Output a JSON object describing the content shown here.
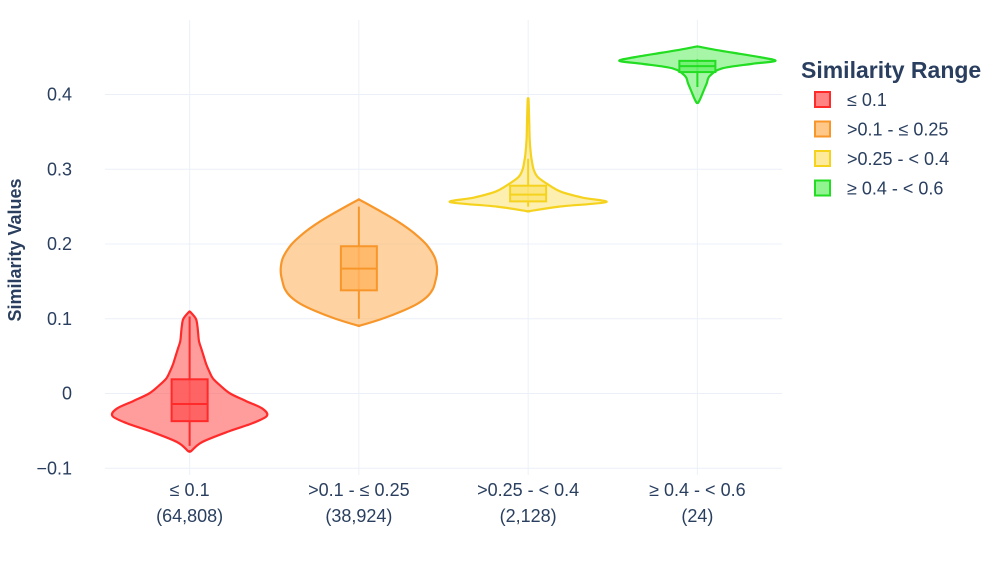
{
  "chart_data": {
    "type": "violin",
    "title": "",
    "xlabel": "",
    "ylabel": "Similarity Values",
    "ylim": [
      -0.11,
      0.47
    ],
    "yticks": [
      -0.1,
      0,
      0.1,
      0.2,
      0.3,
      0.4
    ],
    "ytick_labels": [
      "−0.1",
      "0",
      "0.1",
      "0.2",
      "0.3",
      "0.4"
    ],
    "grid": true,
    "legend": {
      "title": "Similarity Range",
      "position": "right"
    },
    "series": [
      {
        "name": "≤ 0.1",
        "category_line1": "≤ 0.1",
        "category_line2": "(64,808)",
        "color": "#ff2a2a",
        "fill": "#ff5a5a",
        "box": {
          "whisker_low": -0.07,
          "q1": -0.037,
          "median": -0.014,
          "q3": 0.019,
          "whisker_high": 0.103
        },
        "violin": {
          "y_min": -0.077,
          "y_max": 0.109,
          "profile": [
            [
              -0.077,
              0.02
            ],
            [
              -0.065,
              0.16
            ],
            [
              -0.05,
              0.52
            ],
            [
              -0.04,
              0.8
            ],
            [
              -0.03,
              0.99
            ],
            [
              -0.02,
              0.93
            ],
            [
              -0.01,
              0.72
            ],
            [
              0.0,
              0.52
            ],
            [
              0.01,
              0.4
            ],
            [
              0.02,
              0.3
            ],
            [
              0.03,
              0.25
            ],
            [
              0.04,
              0.21
            ],
            [
              0.05,
              0.18
            ],
            [
              0.06,
              0.15
            ],
            [
              0.07,
              0.12
            ],
            [
              0.08,
              0.11
            ],
            [
              0.09,
              0.1
            ],
            [
              0.1,
              0.08
            ],
            [
              0.109,
              0.01
            ]
          ]
        }
      },
      {
        "name": ">0.1 - ≤ 0.25",
        "category_line1": ">0.1 - ≤ 0.25",
        "category_line2": "(38,924)",
        "color": "#f7962b",
        "fill": "#ffb562",
        "box": {
          "whisker_low": 0.1,
          "q1": 0.138,
          "median": 0.167,
          "q3": 0.197,
          "whisker_high": 0.25
        },
        "violin": {
          "y_min": 0.091,
          "y_max": 0.259,
          "profile": [
            [
              0.091,
              0.02
            ],
            [
              0.1,
              0.3
            ],
            [
              0.11,
              0.55
            ],
            [
              0.12,
              0.75
            ],
            [
              0.13,
              0.88
            ],
            [
              0.14,
              0.95
            ],
            [
              0.15,
              0.98
            ],
            [
              0.16,
              1.0
            ],
            [
              0.17,
              1.0
            ],
            [
              0.18,
              0.98
            ],
            [
              0.19,
              0.93
            ],
            [
              0.2,
              0.86
            ],
            [
              0.21,
              0.76
            ],
            [
              0.22,
              0.64
            ],
            [
              0.23,
              0.5
            ],
            [
              0.24,
              0.34
            ],
            [
              0.25,
              0.17
            ],
            [
              0.259,
              0.01
            ]
          ]
        }
      },
      {
        "name": ">0.25 - < 0.4",
        "category_line1": ">0.25 - < 0.4",
        "category_line2": "(2,128)",
        "color": "#f5d21e",
        "fill": "#fce47a",
        "box": {
          "whisker_low": 0.25,
          "q1": 0.257,
          "median": 0.266,
          "q3": 0.278,
          "whisker_high": 0.314
        },
        "violin": {
          "y_min": 0.244,
          "y_max": 0.394,
          "profile": [
            [
              0.244,
              0.02
            ],
            [
              0.25,
              0.4
            ],
            [
              0.256,
              1.0
            ],
            [
              0.262,
              0.7
            ],
            [
              0.27,
              0.42
            ],
            [
              0.28,
              0.25
            ],
            [
              0.29,
              0.12
            ],
            [
              0.3,
              0.07
            ],
            [
              0.31,
              0.05
            ],
            [
              0.32,
              0.035
            ],
            [
              0.34,
              0.02
            ],
            [
              0.36,
              0.015
            ],
            [
              0.38,
              0.01
            ],
            [
              0.394,
              0.005
            ]
          ]
        }
      },
      {
        "name": "≥ 0.4 - < 0.6",
        "category_line1": "≥ 0.4 - < 0.6",
        "category_line2": "(24)",
        "color": "#22dd22",
        "fill": "#6cf06c",
        "box": {
          "whisker_low": 0.41,
          "q1": 0.43,
          "median": 0.438,
          "q3": 0.445,
          "whisker_high": 0.447
        },
        "violin": {
          "y_min": 0.389,
          "y_max": 0.464,
          "profile": [
            [
              0.389,
              0.01
            ],
            [
              0.395,
              0.04
            ],
            [
              0.405,
              0.08
            ],
            [
              0.415,
              0.12
            ],
            [
              0.425,
              0.16
            ],
            [
              0.435,
              0.32
            ],
            [
              0.441,
              0.7
            ],
            [
              0.445,
              1.0
            ],
            [
              0.45,
              0.8
            ],
            [
              0.456,
              0.45
            ],
            [
              0.46,
              0.22
            ],
            [
              0.464,
              0.02
            ]
          ]
        }
      }
    ]
  }
}
